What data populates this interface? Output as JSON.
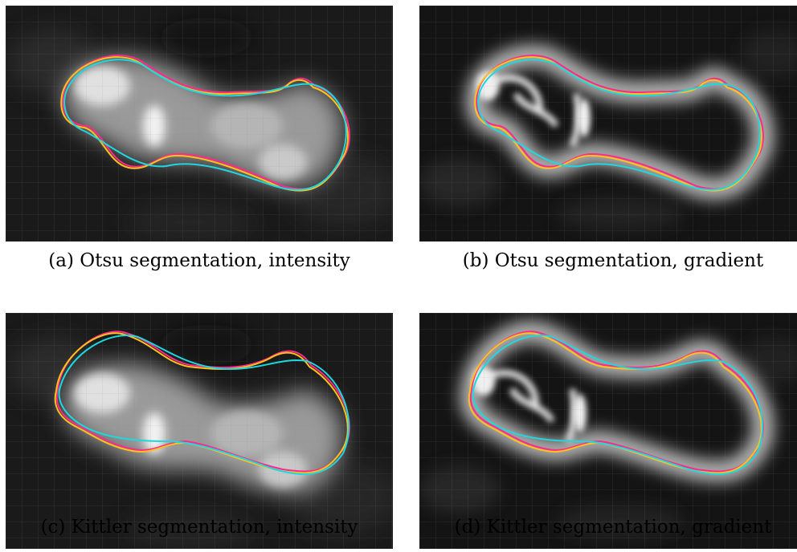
{
  "figure": {
    "panels": [
      {
        "id": "a",
        "caption": "(a) Otsu segmentation, intensity",
        "image_kind": "intensity"
      },
      {
        "id": "b",
        "caption": "(b) Otsu segmentation, gradient",
        "image_kind": "gradient"
      },
      {
        "id": "c",
        "caption": "(c) Kittler segmentation, intensity",
        "image_kind": "intensity"
      },
      {
        "id": "d",
        "caption": "(d) Kittler segmentation, gradient",
        "image_kind": "gradient"
      }
    ],
    "contour_colors": {
      "magenta": "#ff2a8a",
      "yellow": "#ffc21a",
      "cyan": "#1ed8e0"
    },
    "grid_color": "#8a8a8a"
  }
}
